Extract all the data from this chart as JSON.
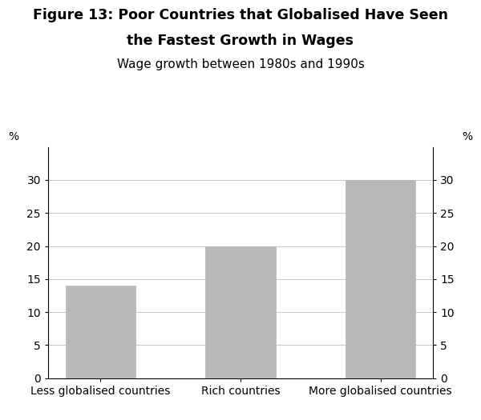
{
  "title_line1": "Figure 13: Poor Countries that Globalised Have Seen",
  "title_line2": "the Fastest Growth in Wages",
  "subtitle": "Wage growth between 1980s and 1990s",
  "categories": [
    "Less globalised countries",
    "Rich countries",
    "More globalised countries"
  ],
  "values": [
    14,
    20,
    30
  ],
  "bar_color": "#b8b8b8",
  "bar_edge_color": "#b8b8b8",
  "ylim": [
    0,
    35
  ],
  "yticks": [
    0,
    5,
    10,
    15,
    20,
    25,
    30
  ],
  "ylabel_left": "%",
  "ylabel_right": "%",
  "title_color": "#000000",
  "subtitle_color": "#000000",
  "title_fontsize": 12.5,
  "subtitle_fontsize": 11,
  "tick_fontsize": 10,
  "background_color": "#ffffff",
  "grid_color": "#c8c8c8"
}
